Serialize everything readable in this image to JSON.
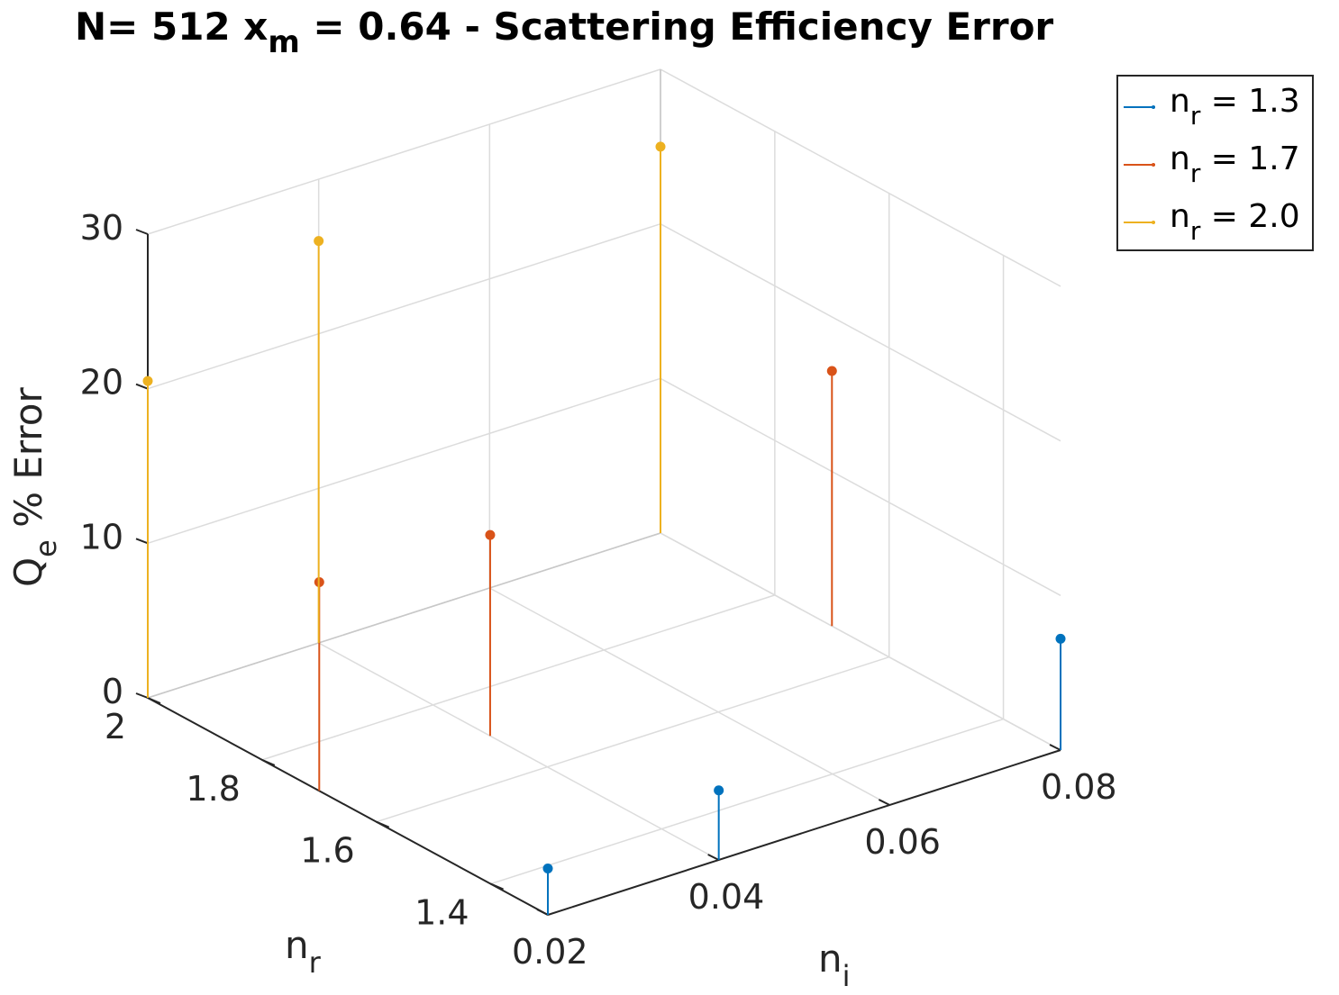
{
  "chart_data": {
    "type": "stem3",
    "title": {
      "prefix": "N= 512 x",
      "sub": "m",
      "suffix": " = 0.64 - Scattering Efficiency Error"
    },
    "xlabel": {
      "main": "n",
      "sub": "i"
    },
    "ylabel": {
      "main": "n",
      "sub": "r"
    },
    "zlabel": {
      "main": "Q",
      "sub": "e",
      "suffix": " % Error"
    },
    "x_ticks": [
      "0.02",
      "0.04",
      "0.06",
      "0.08"
    ],
    "y_ticks": [
      "1.4",
      "1.6",
      "1.8",
      "2"
    ],
    "z_ticks": [
      "0",
      "10",
      "20",
      "30"
    ],
    "xlim": [
      0.02,
      0.08
    ],
    "ylim": [
      1.3,
      2.0
    ],
    "zlim": [
      0,
      30
    ],
    "grid": true,
    "legend_position": "top-right",
    "series": [
      {
        "legend_main": "n",
        "legend_sub": "r",
        "legend_value": " = 1.3",
        "color": "#0072BD",
        "points": [
          {
            "x": 0.02,
            "y": 1.3,
            "z": 3
          },
          {
            "x": 0.04,
            "y": 1.3,
            "z": 4.5
          },
          {
            "x": 0.08,
            "y": 1.3,
            "z": 7.2
          }
        ]
      },
      {
        "legend_main": "n",
        "legend_sub": "r",
        "legend_value": " = 1.7",
        "color": "#D95319",
        "points": [
          {
            "x": 0.02,
            "y": 1.7,
            "z": 13.5
          },
          {
            "x": 0.04,
            "y": 1.7,
            "z": 13
          },
          {
            "x": 0.08,
            "y": 1.7,
            "z": 16.5
          }
        ]
      },
      {
        "legend_main": "n",
        "legend_sub": "r",
        "legend_value": " = 2.0",
        "color": "#EDB120",
        "points": [
          {
            "x": 0.02,
            "y": 2.0,
            "z": 20.5
          },
          {
            "x": 0.04,
            "y": 2.0,
            "z": 26
          },
          {
            "x": 0.08,
            "y": 2.0,
            "z": 25
          }
        ]
      }
    ]
  }
}
